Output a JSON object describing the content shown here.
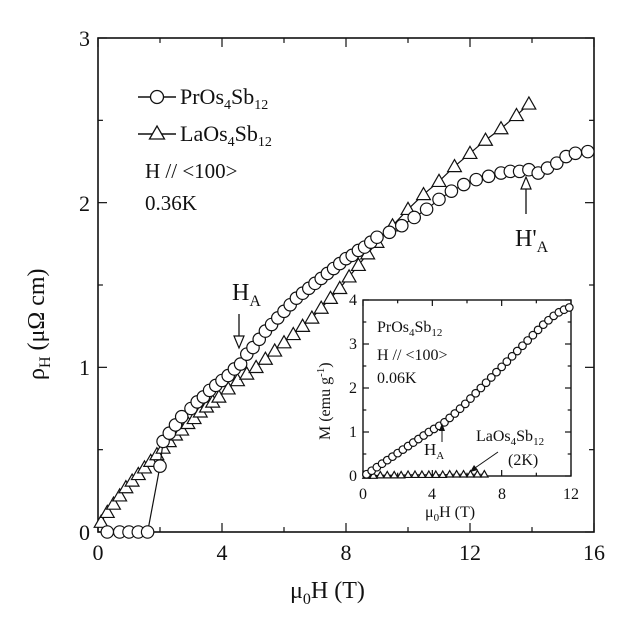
{
  "chart_data": [
    {
      "type": "scatter",
      "xlabel": "μ0H (T)",
      "ylabel": "ρH (μΩ cm)",
      "xlim": [
        0,
        16
      ],
      "ylim": [
        0,
        3
      ],
      "xticks": [
        "0",
        "4",
        "8",
        "12",
        "16"
      ],
      "yticks": [
        "0",
        "1",
        "2",
        "3"
      ],
      "legend": {
        "placement": "top-left",
        "entries": [
          {
            "marker": "circle",
            "label": "PrOs4Sb12"
          },
          {
            "marker": "triangle",
            "label": "LaOs4Sb12"
          }
        ]
      },
      "annotations": {
        "conditions": [
          "H // <100>",
          "0.36K"
        ],
        "ha_label": "HA",
        "ha_field": 4.7,
        "ha_prime_label": "H'A",
        "ha_prime_field": 13.8
      },
      "series": [
        {
          "name": "PrOs4Sb12",
          "marker": "circle",
          "x": [
            0.3,
            0.7,
            1.0,
            1.3,
            1.6,
            2.0,
            2.1,
            2.3,
            2.5,
            2.7,
            3.0,
            3.2,
            3.4,
            3.6,
            3.8,
            4.0,
            4.2,
            4.4,
            4.6,
            4.8,
            5.0,
            5.2,
            5.4,
            5.6,
            5.8,
            6.0,
            6.2,
            6.4,
            6.6,
            6.8,
            7.0,
            7.2,
            7.4,
            7.6,
            7.8,
            8.0,
            8.2,
            8.4,
            8.6,
            8.8,
            9.0,
            9.4,
            9.8,
            10.2,
            10.6,
            11.0,
            11.4,
            11.8,
            12.2,
            12.6,
            13.0,
            13.3,
            13.6,
            13.9,
            14.2,
            14.5,
            14.8,
            15.1,
            15.4,
            15.8
          ],
          "y": [
            0.0,
            0.0,
            0.0,
            0.0,
            0.0,
            0.4,
            0.55,
            0.6,
            0.65,
            0.7,
            0.75,
            0.79,
            0.82,
            0.86,
            0.89,
            0.92,
            0.95,
            0.99,
            1.02,
            1.08,
            1.12,
            1.17,
            1.22,
            1.26,
            1.3,
            1.34,
            1.38,
            1.42,
            1.45,
            1.48,
            1.51,
            1.54,
            1.57,
            1.6,
            1.63,
            1.66,
            1.68,
            1.71,
            1.73,
            1.76,
            1.79,
            1.82,
            1.86,
            1.91,
            1.96,
            2.02,
            2.07,
            2.11,
            2.14,
            2.16,
            2.18,
            2.19,
            2.19,
            2.2,
            2.18,
            2.21,
            2.24,
            2.28,
            2.3,
            2.31
          ]
        },
        {
          "name": "LaOs4Sb12",
          "marker": "triangle",
          "x": [
            0.1,
            0.3,
            0.5,
            0.7,
            0.9,
            1.1,
            1.3,
            1.5,
            1.7,
            1.9,
            2.1,
            2.3,
            2.5,
            2.7,
            2.9,
            3.1,
            3.3,
            3.5,
            3.7,
            3.9,
            4.2,
            4.5,
            4.8,
            5.1,
            5.4,
            5.7,
            6.0,
            6.3,
            6.6,
            6.9,
            7.2,
            7.5,
            7.8,
            8.1,
            8.4,
            8.7,
            9.0,
            9.5,
            10.0,
            10.5,
            11.0,
            11.5,
            12.0,
            12.5,
            13.0,
            13.5,
            13.9
          ],
          "y": [
            0.06,
            0.12,
            0.17,
            0.22,
            0.27,
            0.31,
            0.35,
            0.39,
            0.43,
            0.47,
            0.51,
            0.55,
            0.59,
            0.62,
            0.66,
            0.69,
            0.73,
            0.76,
            0.79,
            0.82,
            0.87,
            0.92,
            0.96,
            1.0,
            1.05,
            1.1,
            1.15,
            1.2,
            1.25,
            1.3,
            1.36,
            1.42,
            1.48,
            1.55,
            1.62,
            1.69,
            1.76,
            1.86,
            1.96,
            2.05,
            2.13,
            2.22,
            2.3,
            2.38,
            2.45,
            2.53,
            2.6
          ]
        }
      ]
    },
    {
      "type": "scatter",
      "xlabel": "μ0H (T)",
      "ylabel": "M (emu g-1)",
      "xlim": [
        0,
        12
      ],
      "ylim": [
        0,
        4
      ],
      "xticks": [
        "0",
        "4",
        "8",
        "12"
      ],
      "yticks": [
        "0",
        "1",
        "2",
        "3",
        "4"
      ],
      "annotations": {
        "conditions": [
          "PrOs4Sb12",
          "H // <100>",
          "0.06K"
        ],
        "ha_label": "HA",
        "ha_field": 4.7,
        "la_label": "LaOs4Sb12",
        "la_temp": "(2K)"
      },
      "series": [
        {
          "name": "PrOs4Sb12",
          "marker": "circle",
          "x": [
            0.2,
            0.5,
            0.8,
            1.1,
            1.4,
            1.7,
            2.0,
            2.3,
            2.6,
            2.9,
            3.2,
            3.5,
            3.8,
            4.1,
            4.4,
            4.7,
            5.0,
            5.3,
            5.6,
            5.9,
            6.2,
            6.5,
            6.8,
            7.1,
            7.4,
            7.7,
            8.0,
            8.3,
            8.6,
            8.9,
            9.2,
            9.5,
            9.8,
            10.1,
            10.4,
            10.7,
            11.0,
            11.3,
            11.6,
            11.9
          ],
          "y": [
            0.04,
            0.12,
            0.2,
            0.28,
            0.36,
            0.44,
            0.52,
            0.6,
            0.68,
            0.76,
            0.84,
            0.92,
            1.0,
            1.07,
            1.14,
            1.22,
            1.32,
            1.42,
            1.53,
            1.64,
            1.76,
            1.88,
            2.0,
            2.12,
            2.24,
            2.36,
            2.48,
            2.6,
            2.72,
            2.84,
            2.96,
            3.08,
            3.2,
            3.32,
            3.44,
            3.54,
            3.64,
            3.72,
            3.78,
            3.83
          ]
        },
        {
          "name": "LaOs4Sb12",
          "marker": "triangle",
          "x": [
            0.2,
            0.6,
            1.0,
            1.4,
            1.8,
            2.2,
            2.6,
            3.0,
            3.4,
            3.8,
            4.2,
            4.6,
            5.0,
            5.4,
            5.8,
            6.2,
            6.6,
            7.0
          ],
          "y": [
            0.01,
            0.01,
            0.02,
            0.02,
            0.02,
            0.02,
            0.03,
            0.03,
            0.03,
            0.03,
            0.03,
            0.03,
            0.04,
            0.04,
            0.04,
            0.04,
            0.04,
            0.04
          ]
        }
      ]
    }
  ]
}
